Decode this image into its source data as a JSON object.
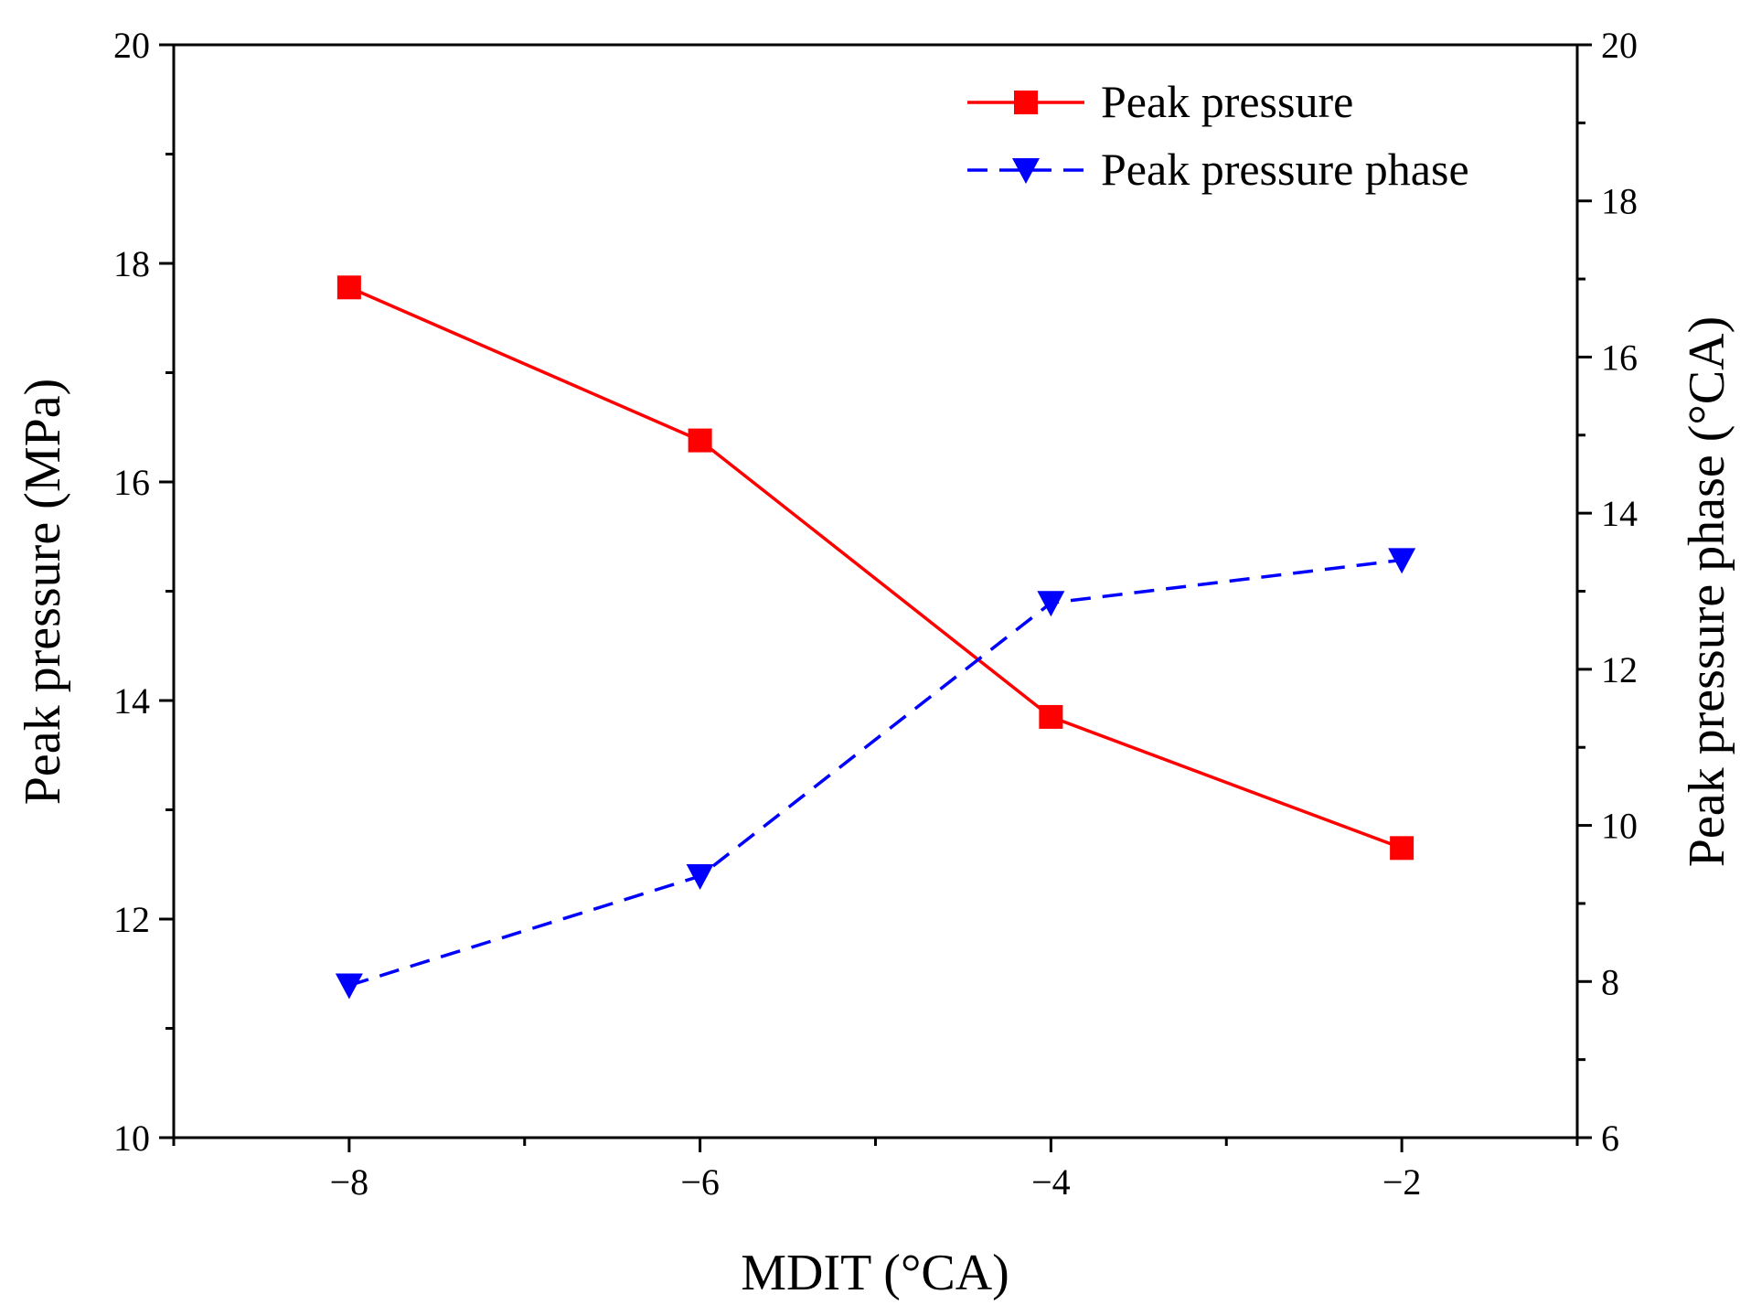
{
  "chart_data": {
    "type": "line",
    "x": [
      -8,
      -6,
      -4,
      -2
    ],
    "xlabel": "MDIT (°CA)",
    "xlim": [
      -9,
      -1
    ],
    "xticks": [
      -8,
      -6,
      -4,
      -2
    ],
    "xtick_labels": [
      "−8",
      "−6",
      "−4",
      "−2"
    ],
    "ylabel": "Peak pressure (MPa)",
    "ylim": [
      10,
      20
    ],
    "yticks": [
      10,
      12,
      14,
      16,
      18,
      20
    ],
    "y2label": "Peak pressure phase (°CA)",
    "y2lim": [
      6,
      20
    ],
    "y2ticks": [
      6,
      8,
      10,
      12,
      14,
      16,
      18,
      20
    ],
    "legend_position": "top-right",
    "series": [
      {
        "name": "Peak pressure",
        "axis": "left",
        "values": [
          17.78,
          16.38,
          13.85,
          12.65
        ],
        "color": "#ff0000",
        "marker": "square",
        "line_style": "solid"
      },
      {
        "name": "Peak pressure phase",
        "axis": "right",
        "values": [
          7.95,
          9.35,
          12.85,
          13.4
        ],
        "color": "#0000ff",
        "marker": "triangle-down",
        "line_style": "dashed"
      }
    ]
  }
}
